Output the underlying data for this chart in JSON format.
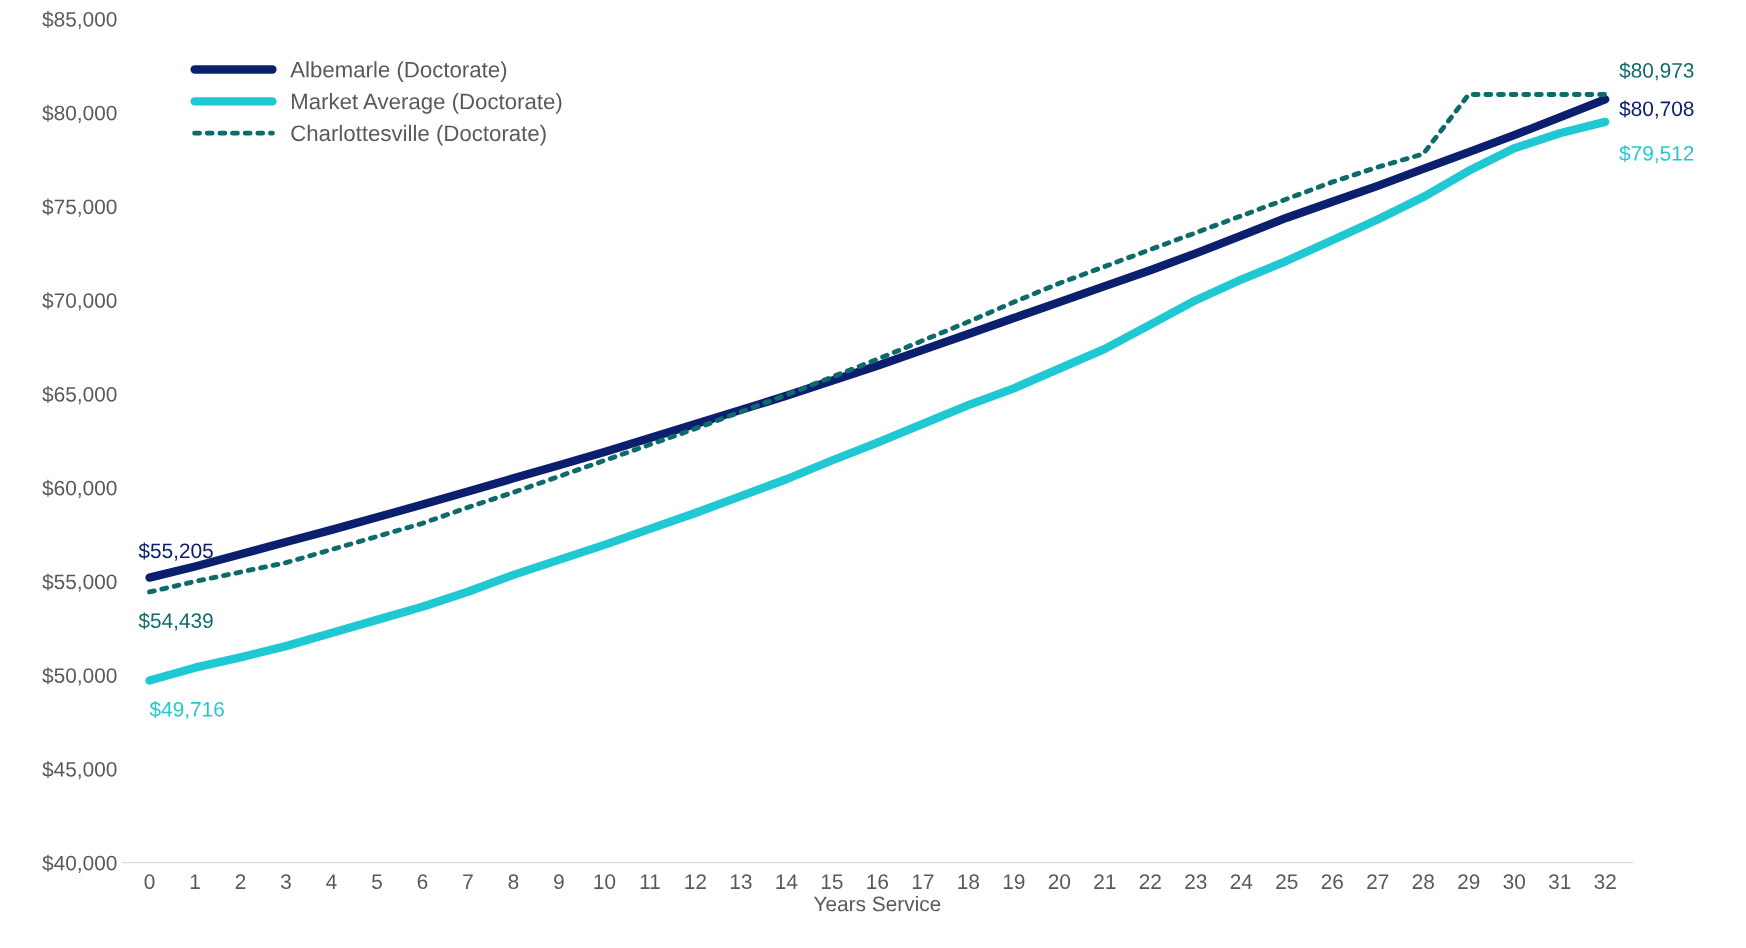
{
  "chart_data": {
    "type": "line",
    "xlabel": "Years Service",
    "categories": [
      "0",
      "1",
      "2",
      "3",
      "4",
      "5",
      "6",
      "7",
      "8",
      "9",
      "10",
      "11",
      "12",
      "13",
      "14",
      "15",
      "16",
      "17",
      "18",
      "19",
      "20",
      "21",
      "22",
      "23",
      "24",
      "25",
      "26",
      "27",
      "28",
      "29",
      "30",
      "31",
      "32"
    ],
    "ylim": [
      40000,
      85000
    ],
    "yticks": [
      {
        "value": 40000,
        "label": "$40,000"
      },
      {
        "value": 45000,
        "label": "$45,000"
      },
      {
        "value": 50000,
        "label": "$50,000"
      },
      {
        "value": 55000,
        "label": "$55,000"
      },
      {
        "value": 60000,
        "label": "$60,000"
      },
      {
        "value": 65000,
        "label": "$65,000"
      },
      {
        "value": 70000,
        "label": "$70,000"
      },
      {
        "value": 75000,
        "label": "$75,000"
      },
      {
        "value": 80000,
        "label": "$80,000"
      },
      {
        "value": 85000,
        "label": "$85,000"
      }
    ],
    "grid": false,
    "legend": "top left",
    "series": [
      {
        "name": "Albemarle (Doctorate)",
        "color": "#0c1f6e",
        "line_style": "solid",
        "values": [
          55205,
          55800,
          56450,
          57100,
          57750,
          58420,
          59100,
          59800,
          60500,
          61200,
          61900,
          62650,
          63400,
          64150,
          64900,
          65700,
          66500,
          67350,
          68200,
          69050,
          69900,
          70750,
          71600,
          72500,
          73450,
          74400,
          75250,
          76100,
          77000,
          77900,
          78800,
          79750,
          80708
        ]
      },
      {
        "name": "Market Average (Doctorate)",
        "color": "#1fc8d2",
        "line_style": "solid",
        "values": [
          49716,
          50400,
          50950,
          51550,
          52250,
          52950,
          53650,
          54450,
          55350,
          56150,
          56950,
          57800,
          58650,
          59550,
          60450,
          61450,
          62400,
          63400,
          64400,
          65300,
          66350,
          67400,
          68700,
          70000,
          71100,
          72100,
          73200,
          74300,
          75500,
          76900,
          78100,
          78900,
          79512
        ]
      },
      {
        "name": "Charlottesville (Doctorate)",
        "color": "#0e6b6b",
        "line_style": "dotted",
        "values": [
          54439,
          55000,
          55500,
          56000,
          56700,
          57400,
          58100,
          58950,
          59750,
          60600,
          61450,
          62300,
          63150,
          64050,
          64950,
          65900,
          66850,
          67850,
          68850,
          69900,
          70900,
          71800,
          72700,
          73600,
          74500,
          75400,
          76300,
          77100,
          77800,
          80973,
          80973,
          80973,
          80973
        ]
      }
    ],
    "annotations": [
      {
        "text": "$55,205",
        "x": "0",
        "y": 55205
      },
      {
        "text": "$54,439",
        "x": "0",
        "y": 54439
      },
      {
        "text": "$49,716",
        "x": "0",
        "y": 49716
      },
      {
        "text": "$80,973",
        "x": "32",
        "y": 80973
      },
      {
        "text": "$80,708",
        "x": "32",
        "y": 80708
      },
      {
        "text": "$79,512",
        "x": "32",
        "y": 79512
      }
    ]
  }
}
